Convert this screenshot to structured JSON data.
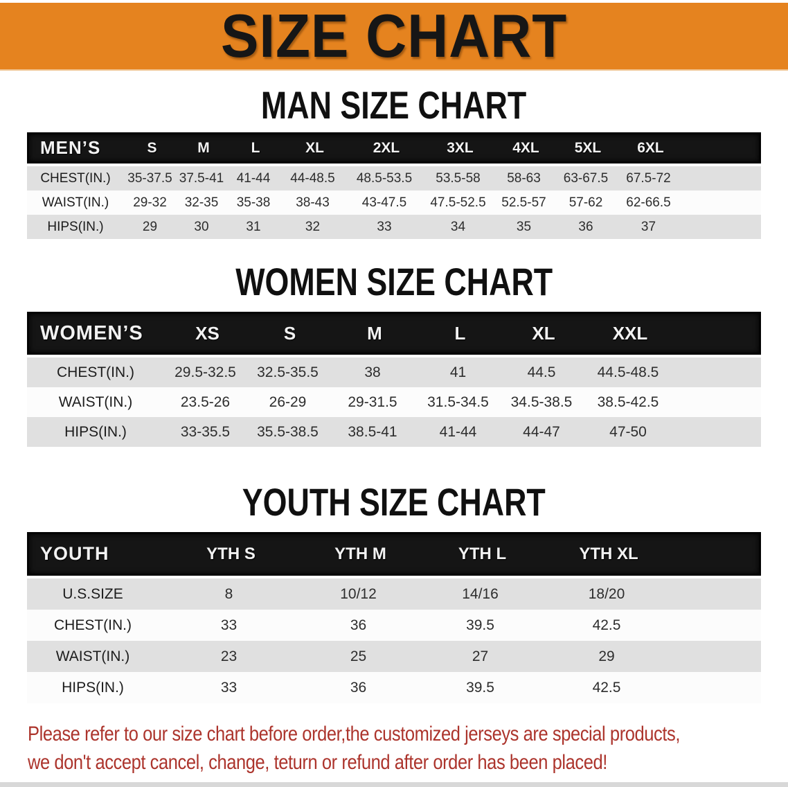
{
  "banner": {
    "title": "SIZE CHART"
  },
  "sections": [
    {
      "id": "men",
      "title": "MAN SIZE CHART",
      "header_label": "MEN’S",
      "columns": [
        "S",
        "M",
        "L",
        "XL",
        "2XL",
        "3XL",
        "4XL",
        "5XL",
        "6XL"
      ],
      "rows": [
        {
          "label": "CHEST(IN.)",
          "values": [
            "35-37.5",
            "37.5-41",
            "41-44",
            "44-48.5",
            "48.5-53.5",
            "53.5-58",
            "58-63",
            "63-67.5",
            "67.5-72"
          ]
        },
        {
          "label": "WAIST(IN.)",
          "values": [
            "29-32",
            "32-35",
            "35-38",
            "38-43",
            "43-47.5",
            "47.5-52.5",
            "52.5-57",
            "57-62",
            "62-66.5"
          ]
        },
        {
          "label": "HIPS(IN.)",
          "values": [
            "29",
            "30",
            "31",
            "32",
            "33",
            "34",
            "35",
            "36",
            "37"
          ]
        }
      ]
    },
    {
      "id": "women",
      "title": "WOMEN SIZE CHART",
      "header_label": "WOMEN’S",
      "columns": [
        "XS",
        "S",
        "M",
        "L",
        "XL",
        "XXL"
      ],
      "rows": [
        {
          "label": "CHEST(IN.)",
          "values": [
            "29.5-32.5",
            "32.5-35.5",
            "38",
            "41",
            "44.5",
            "44.5-48.5"
          ]
        },
        {
          "label": "WAIST(IN.)",
          "values": [
            "23.5-26",
            "26-29",
            "29-31.5",
            "31.5-34.5",
            "34.5-38.5",
            "38.5-42.5"
          ]
        },
        {
          "label": "HIPS(IN.)",
          "values": [
            "33-35.5",
            "35.5-38.5",
            "38.5-41",
            "41-44",
            "44-47",
            "47-50"
          ]
        }
      ]
    },
    {
      "id": "youth",
      "title": "YOUTH SIZE CHART",
      "header_label": "YOUTH",
      "columns": [
        "YTH S",
        "YTH M",
        "YTH L",
        "YTH XL"
      ],
      "rows": [
        {
          "label": "U.S.SIZE",
          "values": [
            "8",
            "10/12",
            "14/16",
            "18/20"
          ]
        },
        {
          "label": "CHEST(IN.)",
          "values": [
            "33",
            "36",
            "39.5",
            "42.5"
          ]
        },
        {
          "label": "WAIST(IN.)",
          "values": [
            "23",
            "25",
            "27",
            "29"
          ]
        },
        {
          "label": "HIPS(IN.)",
          "values": [
            "33",
            "36",
            "39.5",
            "42.5"
          ]
        }
      ]
    }
  ],
  "disclaimer": {
    "line1": "Please refer to our size chart before order,the customized jerseys are special products,",
    "line2": "we don't accept cancel, change, teturn or refund after order has been placed!"
  },
  "colors": {
    "banner_bg": "#E5831F",
    "header_bar": "#151515",
    "row_alt": "#E0E0E0",
    "disclaimer_text": "#AC342C"
  }
}
